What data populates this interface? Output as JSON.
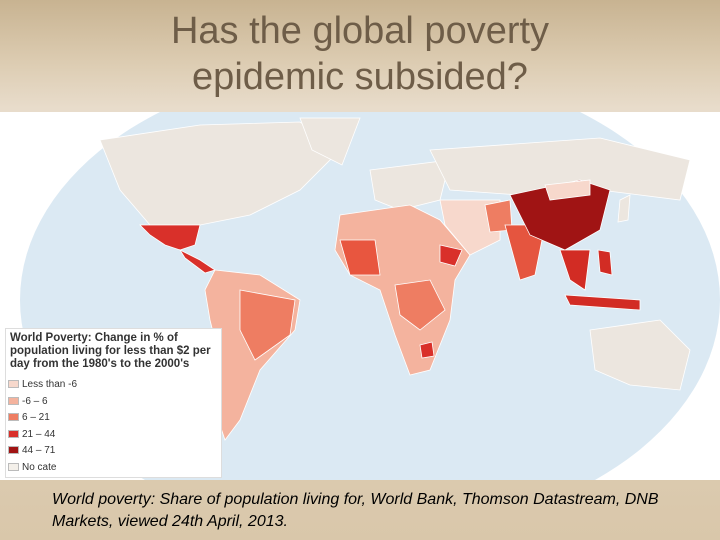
{
  "title": "Has the global poverty epidemic subsided?",
  "legend": {
    "title": "World Poverty: Change in % of population living for less than $2 per day from the 1980's to the 2000's",
    "items": [
      {
        "label": "Less than -6",
        "color": "#f7d8cc"
      },
      {
        "label": "-6 – 6",
        "color": "#f4b39e"
      },
      {
        "label": "6 – 21",
        "color": "#ee7d62"
      },
      {
        "label": "21 – 44",
        "color": "#d9302a"
      },
      {
        "label": "44 – 71",
        "color": "#a01414"
      },
      {
        "label": "No cate",
        "color": "#f4f0ea"
      }
    ]
  },
  "caption": "World poverty: Share of population living for, World Bank, Thomson Datastream, DNB Markets, viewed 24th April, 2013."
}
